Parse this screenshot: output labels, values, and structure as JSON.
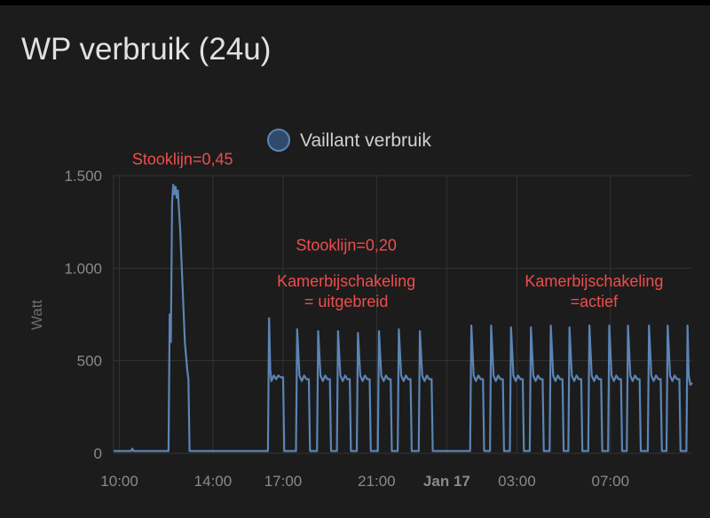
{
  "card": {
    "title": "WP verbruik (24u)"
  },
  "colors": {
    "background": "#1c1c1c",
    "series": "#5b84b5",
    "annotation": "#ef4d4d",
    "grid": "#333333"
  },
  "chart_data": {
    "type": "line",
    "title": "",
    "xlabel": "",
    "ylabel": "Watt",
    "ylim": [
      0,
      1500
    ],
    "yticks": [
      {
        "value": 0,
        "label": "0"
      },
      {
        "value": 500,
        "label": "500"
      },
      {
        "value": 1000,
        "label": "1.000"
      },
      {
        "value": 1500,
        "label": "1.500"
      }
    ],
    "xrange_hours": [
      9.75,
      34.5
    ],
    "xticks": [
      {
        "hour": 10,
        "label": "10:00",
        "bold": false
      },
      {
        "hour": 14,
        "label": "14:00",
        "bold": false
      },
      {
        "hour": 17,
        "label": "17:00",
        "bold": false
      },
      {
        "hour": 21,
        "label": "21:00",
        "bold": false
      },
      {
        "hour": 24,
        "label": "Jan 17",
        "bold": true
      },
      {
        "hour": 27,
        "label": "03:00",
        "bold": false
      },
      {
        "hour": 31,
        "label": "07:00",
        "bold": false
      }
    ],
    "legend": {
      "position": "top",
      "entries": [
        "Vaillant verbruik"
      ]
    },
    "series": [
      {
        "name": "Vaillant verbruik",
        "points": [
          [
            9.75,
            12
          ],
          [
            10.5,
            12
          ],
          [
            10.55,
            25
          ],
          [
            10.6,
            12
          ],
          [
            12.1,
            12
          ],
          [
            12.15,
            750
          ],
          [
            12.2,
            600
          ],
          [
            12.25,
            1350
          ],
          [
            12.3,
            1450
          ],
          [
            12.35,
            1400
          ],
          [
            12.4,
            1440
          ],
          [
            12.45,
            1380
          ],
          [
            12.5,
            1420
          ],
          [
            12.6,
            1200
          ],
          [
            12.7,
            900
          ],
          [
            12.8,
            600
          ],
          [
            12.9,
            450
          ],
          [
            12.95,
            400
          ],
          [
            13.0,
            12
          ],
          [
            16.35,
            12
          ],
          [
            16.4,
            730
          ],
          [
            16.45,
            450
          ],
          [
            16.5,
            390
          ],
          [
            16.6,
            420
          ],
          [
            16.7,
            400
          ],
          [
            16.8,
            420
          ],
          [
            16.9,
            410
          ],
          [
            17.0,
            410
          ],
          [
            17.05,
            12
          ],
          [
            17.55,
            12
          ],
          [
            17.6,
            670
          ],
          [
            17.7,
            420
          ],
          [
            17.8,
            390
          ],
          [
            17.9,
            420
          ],
          [
            18.0,
            400
          ],
          [
            18.1,
            400
          ],
          [
            18.15,
            12
          ],
          [
            18.45,
            12
          ],
          [
            18.5,
            660
          ],
          [
            18.6,
            420
          ],
          [
            18.7,
            390
          ],
          [
            18.8,
            420
          ],
          [
            18.9,
            400
          ],
          [
            19.0,
            400
          ],
          [
            19.05,
            12
          ],
          [
            19.3,
            12
          ],
          [
            19.35,
            660
          ],
          [
            19.45,
            420
          ],
          [
            19.55,
            390
          ],
          [
            19.65,
            420
          ],
          [
            19.75,
            400
          ],
          [
            19.85,
            400
          ],
          [
            19.9,
            12
          ],
          [
            20.15,
            12
          ],
          [
            20.2,
            650
          ],
          [
            20.3,
            420
          ],
          [
            20.4,
            390
          ],
          [
            20.5,
            420
          ],
          [
            20.6,
            400
          ],
          [
            20.7,
            400
          ],
          [
            20.75,
            12
          ],
          [
            21.05,
            12
          ],
          [
            21.1,
            660
          ],
          [
            21.2,
            420
          ],
          [
            21.3,
            390
          ],
          [
            21.4,
            420
          ],
          [
            21.5,
            400
          ],
          [
            21.6,
            400
          ],
          [
            21.65,
            12
          ],
          [
            21.9,
            12
          ],
          [
            21.95,
            670
          ],
          [
            22.05,
            420
          ],
          [
            22.15,
            390
          ],
          [
            22.25,
            420
          ],
          [
            22.35,
            400
          ],
          [
            22.45,
            400
          ],
          [
            22.5,
            12
          ],
          [
            22.8,
            12
          ],
          [
            22.85,
            660
          ],
          [
            22.95,
            420
          ],
          [
            23.05,
            390
          ],
          [
            23.15,
            420
          ],
          [
            23.25,
            400
          ],
          [
            23.35,
            400
          ],
          [
            23.4,
            12
          ],
          [
            25.0,
            12
          ],
          [
            25.05,
            690
          ],
          [
            25.15,
            420
          ],
          [
            25.25,
            390
          ],
          [
            25.35,
            420
          ],
          [
            25.45,
            400
          ],
          [
            25.55,
            400
          ],
          [
            25.6,
            12
          ],
          [
            25.85,
            12
          ],
          [
            25.9,
            690
          ],
          [
            26.0,
            420
          ],
          [
            26.1,
            390
          ],
          [
            26.2,
            420
          ],
          [
            26.3,
            400
          ],
          [
            26.4,
            400
          ],
          [
            26.45,
            12
          ],
          [
            26.7,
            12
          ],
          [
            26.75,
            680
          ],
          [
            26.85,
            420
          ],
          [
            26.95,
            390
          ],
          [
            27.05,
            420
          ],
          [
            27.15,
            400
          ],
          [
            27.25,
            400
          ],
          [
            27.3,
            12
          ],
          [
            27.55,
            12
          ],
          [
            27.6,
            680
          ],
          [
            27.7,
            420
          ],
          [
            27.8,
            390
          ],
          [
            27.9,
            420
          ],
          [
            28.0,
            400
          ],
          [
            28.1,
            400
          ],
          [
            28.15,
            12
          ],
          [
            28.4,
            12
          ],
          [
            28.45,
            690
          ],
          [
            28.55,
            420
          ],
          [
            28.65,
            390
          ],
          [
            28.75,
            420
          ],
          [
            28.85,
            400
          ],
          [
            28.95,
            400
          ],
          [
            29.0,
            12
          ],
          [
            29.2,
            12
          ],
          [
            29.25,
            680
          ],
          [
            29.35,
            420
          ],
          [
            29.45,
            390
          ],
          [
            29.55,
            420
          ],
          [
            29.65,
            400
          ],
          [
            29.75,
            400
          ],
          [
            29.8,
            12
          ],
          [
            30.05,
            12
          ],
          [
            30.1,
            690
          ],
          [
            30.2,
            420
          ],
          [
            30.3,
            390
          ],
          [
            30.4,
            420
          ],
          [
            30.5,
            400
          ],
          [
            30.6,
            400
          ],
          [
            30.65,
            12
          ],
          [
            30.9,
            12
          ],
          [
            30.95,
            690
          ],
          [
            31.05,
            420
          ],
          [
            31.15,
            390
          ],
          [
            31.25,
            420
          ],
          [
            31.35,
            400
          ],
          [
            31.45,
            400
          ],
          [
            31.5,
            12
          ],
          [
            31.7,
            12
          ],
          [
            31.75,
            690
          ],
          [
            31.85,
            420
          ],
          [
            31.95,
            390
          ],
          [
            32.05,
            420
          ],
          [
            32.15,
            400
          ],
          [
            32.25,
            400
          ],
          [
            32.3,
            12
          ],
          [
            32.6,
            12
          ],
          [
            32.65,
            690
          ],
          [
            32.75,
            420
          ],
          [
            32.85,
            390
          ],
          [
            32.95,
            420
          ],
          [
            33.05,
            400
          ],
          [
            33.15,
            400
          ],
          [
            33.2,
            12
          ],
          [
            33.4,
            12
          ],
          [
            33.45,
            690
          ],
          [
            33.55,
            420
          ],
          [
            33.65,
            390
          ],
          [
            33.75,
            420
          ],
          [
            33.85,
            400
          ],
          [
            33.95,
            400
          ],
          [
            34.0,
            12
          ],
          [
            34.25,
            12
          ],
          [
            34.3,
            690
          ],
          [
            34.35,
            420
          ],
          [
            34.42,
            370
          ],
          [
            34.5,
            380
          ]
        ]
      }
    ],
    "annotations": [
      {
        "lines": [
          "Stooklijn=0,45"
        ],
        "hour": 12.7,
        "value": 1560
      },
      {
        "lines": [
          "Stooklijn=0,20"
        ],
        "hour": 19.7,
        "value": 1095
      },
      {
        "lines": [
          "Kamerbijschakeling",
          "= uitgebreid"
        ],
        "hour": 19.7,
        "value": 900
      },
      {
        "lines": [
          "Kamerbijschakeling",
          "=actief"
        ],
        "hour": 30.3,
        "value": 900
      }
    ]
  }
}
